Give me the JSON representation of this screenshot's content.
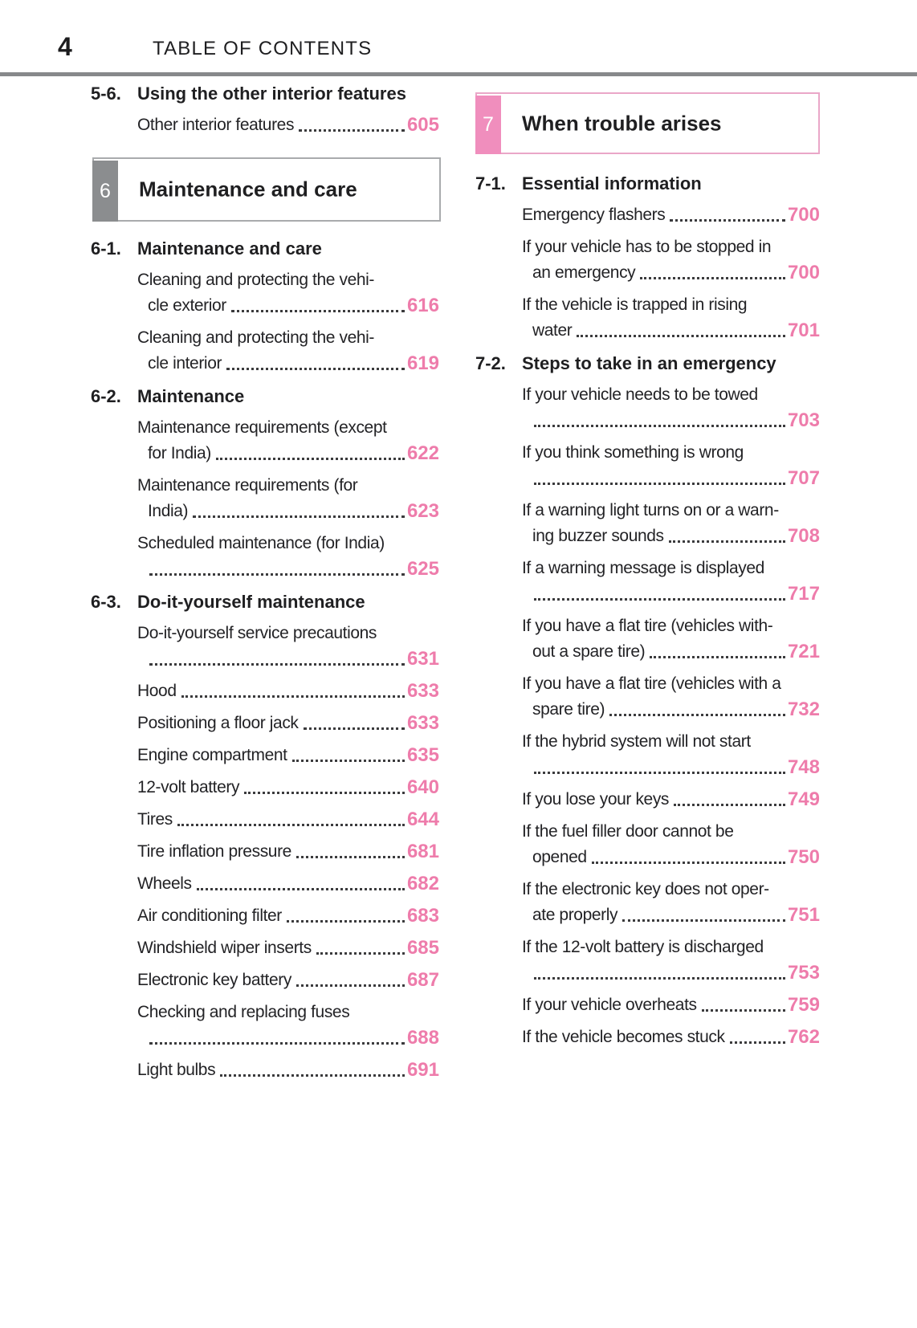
{
  "page": {
    "number": "4",
    "header_title": "TABLE OF CONTENTS"
  },
  "colors": {
    "text": "#232326",
    "accent_pink": "#ee7cab",
    "tab_pink": "#f08ebd",
    "box_border_pink": "#eaa7c8",
    "tab_gray": "#8b8d8f",
    "box_border_gray": "#a9abad",
    "rule_gray": "#87898b"
  },
  "columns": [
    {
      "blocks": [
        {
          "type": "section",
          "label": "5-6.",
          "title": "Using the other interior features",
          "entries": [
            {
              "lines": [],
              "last": "Other interior features",
              "page": "605"
            }
          ]
        },
        {
          "type": "chapter",
          "number": "6",
          "title": "Maintenance and care",
          "color": "gray"
        },
        {
          "type": "section",
          "label": "6-1.",
          "title": "Maintenance and care",
          "entries": [
            {
              "lines": [
                "Cleaning and protecting the vehi-"
              ],
              "last": "cle exterior",
              "page": "616"
            },
            {
              "lines": [
                "Cleaning and protecting the vehi-"
              ],
              "last": "cle interior",
              "page": "619"
            }
          ]
        },
        {
          "type": "section",
          "label": "6-2.",
          "title": "Maintenance",
          "entries": [
            {
              "lines": [
                "Maintenance requirements (except"
              ],
              "last": "for India)",
              "page": "622"
            },
            {
              "lines": [
                "Maintenance requirements (for"
              ],
              "last": "India)",
              "page": "623"
            },
            {
              "lines": [
                "Scheduled maintenance (for India)"
              ],
              "last": "",
              "page": "625"
            }
          ]
        },
        {
          "type": "section",
          "label": "6-3.",
          "title": "Do-it-yourself maintenance",
          "entries": [
            {
              "lines": [
                "Do-it-yourself service precautions"
              ],
              "last": "",
              "page": "631"
            },
            {
              "lines": [],
              "last": "Hood",
              "page": "633"
            },
            {
              "lines": [],
              "last": "Positioning a floor jack",
              "page": "633"
            },
            {
              "lines": [],
              "last": "Engine compartment",
              "page": "635"
            },
            {
              "lines": [],
              "last": "12-volt battery",
              "page": "640"
            },
            {
              "lines": [],
              "last": "Tires",
              "page": "644"
            },
            {
              "lines": [],
              "last": "Tire inflation pressure",
              "page": "681"
            },
            {
              "lines": [],
              "last": "Wheels",
              "page": "682"
            },
            {
              "lines": [],
              "last": "Air conditioning filter",
              "page": "683"
            },
            {
              "lines": [],
              "last": "Windshield wiper inserts",
              "page": "685"
            },
            {
              "lines": [],
              "last": "Electronic key battery",
              "page": "687"
            },
            {
              "lines": [
                "Checking and replacing fuses"
              ],
              "last": "",
              "page": "688"
            },
            {
              "lines": [],
              "last": "Light bulbs",
              "page": "691"
            }
          ]
        }
      ]
    },
    {
      "blocks": [
        {
          "type": "chapter",
          "number": "7",
          "title": "When trouble arises",
          "color": "pink"
        },
        {
          "type": "section",
          "label": "7-1.",
          "title": "Essential information",
          "entries": [
            {
              "lines": [],
              "last": "Emergency flashers",
              "page": "700"
            },
            {
              "lines": [
                "If your vehicle has to be stopped in"
              ],
              "last": "an emergency",
              "page": "700"
            },
            {
              "lines": [
                "If the vehicle is trapped in rising"
              ],
              "last": "water",
              "page": "701"
            }
          ]
        },
        {
          "type": "section",
          "label": "7-2.",
          "title": "Steps to take in an emergency",
          "entries": [
            {
              "lines": [
                "If your vehicle needs to be towed"
              ],
              "last": "",
              "page": "703"
            },
            {
              "lines": [
                "If you think something is wrong"
              ],
              "last": "",
              "page": "707"
            },
            {
              "lines": [
                "If a warning light turns on or a warn-"
              ],
              "last": "ing buzzer sounds",
              "page": "708"
            },
            {
              "lines": [
                "If a warning message is displayed"
              ],
              "last": "",
              "page": "717"
            },
            {
              "lines": [
                "If you have a flat tire (vehicles with-"
              ],
              "last": "out a spare tire)",
              "page": "721"
            },
            {
              "lines": [
                "If you have a flat tire (vehicles with a"
              ],
              "last": "spare tire)",
              "page": "732"
            },
            {
              "lines": [
                "If the hybrid system will not start"
              ],
              "last": "",
              "page": "748"
            },
            {
              "lines": [],
              "last": "If you lose your keys",
              "page": "749"
            },
            {
              "lines": [
                "If the fuel filler door cannot be"
              ],
              "last": "opened",
              "page": "750"
            },
            {
              "lines": [
                "If the electronic key does not oper-"
              ],
              "last": "ate properly",
              "page": "751"
            },
            {
              "lines": [
                "If the 12-volt battery is discharged"
              ],
              "last": "",
              "page": "753"
            },
            {
              "lines": [],
              "last": "If your vehicle overheats",
              "page": "759"
            },
            {
              "lines": [],
              "last": "If the vehicle becomes stuck",
              "page": "762"
            }
          ]
        }
      ]
    }
  ]
}
